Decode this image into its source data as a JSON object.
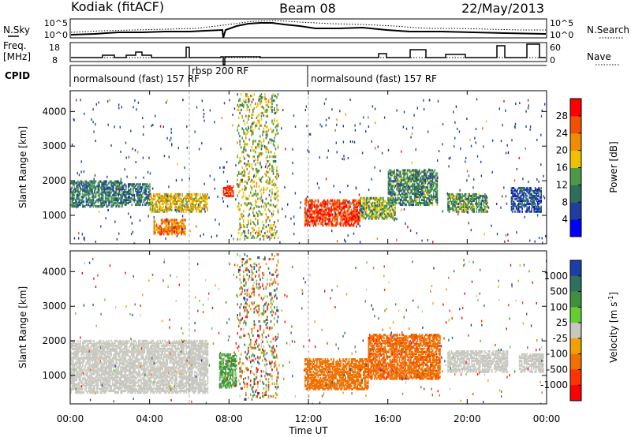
{
  "header": {
    "station": "Kodiak (fitACF)",
    "beam": "Beam 08",
    "date": "22/May/2013"
  },
  "top_panels": {
    "nsky_label": "N.Sky",
    "nsearch_label": "N.Search",
    "nsky_ticks": [
      "10^5",
      "10^0"
    ],
    "nsearch_ticks": [
      "10^5",
      "10^0"
    ],
    "freq_label_1": "Freq.",
    "freq_label_2": "[MHz]",
    "freq_ticks": [
      "18",
      "8"
    ],
    "nave_label": "Nave",
    "nave_ticks": [
      "60",
      "0"
    ],
    "cpid_label": "CPID",
    "cpid_segments": [
      {
        "label": "normalsound (fast) 157 RF",
        "start_hour": 0
      },
      {
        "label": "rbsp 200 RF",
        "start_hour": 6
      },
      {
        "label": "normalsound (fast) 157 RF",
        "start_hour": 12
      }
    ]
  },
  "colors": {
    "power_scale": [
      "#0000ff",
      "#1f3fa0",
      "#2e6e5a",
      "#4a9a4a",
      "#f0c000",
      "#f08c00",
      "#f05000",
      "#ff0000"
    ],
    "velocity_scale": [
      "#1c3fa6",
      "#2f6f5f",
      "#3f8f3f",
      "#66cc33",
      "#c8c8c0",
      "#f0a000",
      "#f07000",
      "#ff3300",
      "#ff0000"
    ],
    "ground_scatter": "#c8c8c0"
  },
  "chart_data": [
    {
      "type": "heatmap",
      "title": "Power",
      "xlabel": "",
      "ylabel": "Slant Range [km]",
      "ylim": [
        180,
        4600
      ],
      "xlim_hours": [
        0,
        24
      ],
      "yticks": [
        "1000",
        "2000",
        "3000",
        "4000"
      ],
      "colorbar_label": "Power [dB]",
      "colorbar_ticks": [
        "4",
        "8",
        "12",
        "16",
        "20",
        "24",
        "28"
      ],
      "colorbar_range": [
        0,
        30
      ],
      "scatter_regions": [
        {
          "t_start": 0.0,
          "t_end": 2.6,
          "r_min": 1250,
          "r_max": 2000,
          "power": 10
        },
        {
          "t_start": 2.6,
          "t_end": 4.0,
          "r_min": 1300,
          "r_max": 1900,
          "power": 9
        },
        {
          "t_start": 4.0,
          "t_end": 6.9,
          "r_min": 1100,
          "r_max": 1600,
          "power": 17
        },
        {
          "t_start": 4.2,
          "t_end": 5.8,
          "r_min": 450,
          "r_max": 900,
          "power": 22
        },
        {
          "t_start": 7.7,
          "t_end": 8.2,
          "r_min": 1550,
          "r_max": 1850,
          "power": 28
        },
        {
          "t_start": 8.4,
          "t_end": 10.5,
          "r_min": 300,
          "r_max": 4500,
          "power": 15
        },
        {
          "t_start": 11.8,
          "t_end": 14.6,
          "r_min": 700,
          "r_max": 1450,
          "power": 26
        },
        {
          "t_start": 14.6,
          "t_end": 16.4,
          "r_min": 900,
          "r_max": 1500,
          "power": 14
        },
        {
          "t_start": 16.0,
          "t_end": 18.5,
          "r_min": 1300,
          "r_max": 2300,
          "power": 11
        },
        {
          "t_start": 19.0,
          "t_end": 21.0,
          "r_min": 1100,
          "r_max": 1600,
          "power": 12
        },
        {
          "t_start": 22.2,
          "t_end": 23.7,
          "r_min": 1100,
          "r_max": 1800,
          "power": 7
        }
      ]
    },
    {
      "type": "heatmap",
      "title": "Velocity",
      "xlabel": "Time UT",
      "ylabel": "Slant Range [km]",
      "ylim": [
        180,
        4600
      ],
      "xlim_hours": [
        0,
        24
      ],
      "xticks": [
        "00:00",
        "04:00",
        "08:00",
        "12:00",
        "16:00",
        "20:00",
        "00:00"
      ],
      "yticks": [
        "1000",
        "2000",
        "3000",
        "4000"
      ],
      "colorbar_label": "Velocity [m s^-1]",
      "colorbar_ticks": [
        "1000",
        "500",
        "100",
        "25",
        "-25",
        "-100",
        "-500",
        "-1000"
      ],
      "scatter_regions": [
        {
          "t_start": 0.0,
          "t_end": 6.9,
          "r_min": 500,
          "r_max": 2000,
          "velocity": 0
        },
        {
          "t_start": 7.5,
          "t_end": 8.4,
          "r_min": 650,
          "r_max": 1600,
          "velocity": 150
        },
        {
          "t_start": 8.4,
          "t_end": 10.5,
          "r_min": 300,
          "r_max": 4500,
          "velocity": 0
        },
        {
          "t_start": 11.8,
          "t_end": 15.0,
          "r_min": 600,
          "r_max": 1500,
          "velocity": -300
        },
        {
          "t_start": 15.0,
          "t_end": 18.6,
          "r_min": 900,
          "r_max": 2200,
          "velocity": -400
        },
        {
          "t_start": 19.0,
          "t_end": 22.0,
          "r_min": 1100,
          "r_max": 1700,
          "velocity": 0
        },
        {
          "t_start": 22.6,
          "t_end": 23.8,
          "r_min": 1100,
          "r_max": 1600,
          "velocity": 0
        }
      ]
    }
  ]
}
